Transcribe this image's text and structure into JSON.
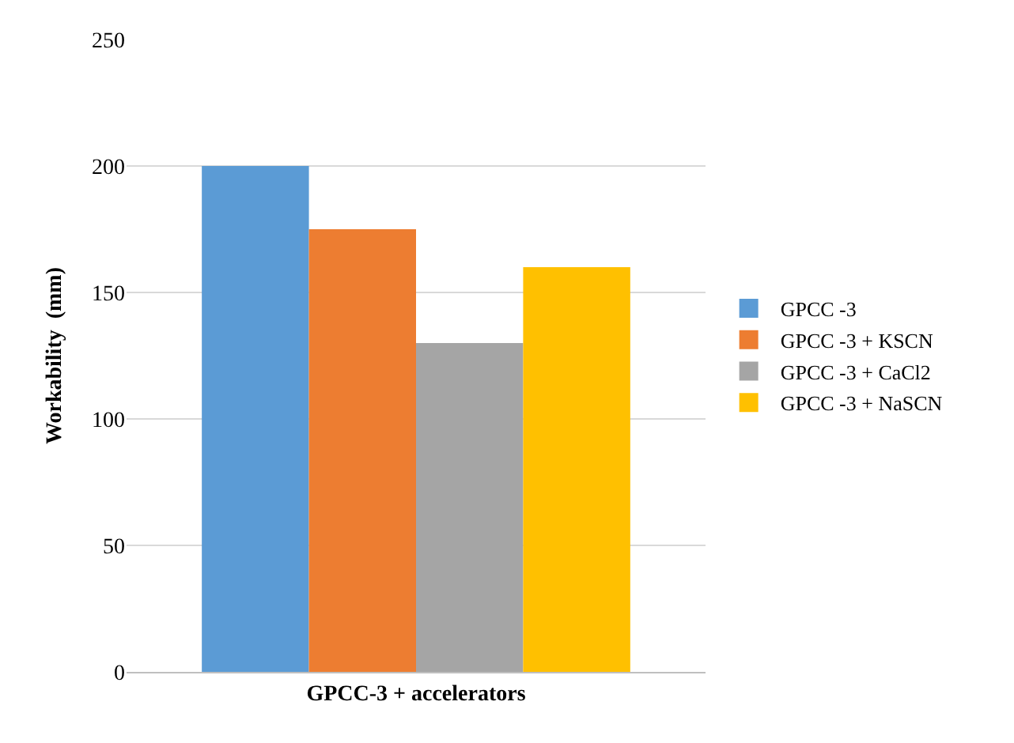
{
  "chart_data": {
    "type": "bar",
    "ylabel": "Workability  (mm)",
    "categories": [
      "GPCC-3 + accelerators"
    ],
    "series": [
      {
        "name": "GPCC -3",
        "color": "#5b9bd5",
        "values": [
          200
        ]
      },
      {
        "name": "GPCC -3 + KSCN",
        "color": "#ed7d31",
        "values": [
          175
        ]
      },
      {
        "name": "GPCC -3 + CaCl2",
        "color": "#a5a5a5",
        "values": [
          130
        ]
      },
      {
        "name": "GPCC -3 + NaSCN",
        "color": "#ffc000",
        "values": [
          160
        ]
      }
    ],
    "ylim": [
      0,
      250
    ],
    "yticks": [
      0,
      50,
      100,
      150,
      200,
      250
    ],
    "grid": "y",
    "legend": "right"
  }
}
